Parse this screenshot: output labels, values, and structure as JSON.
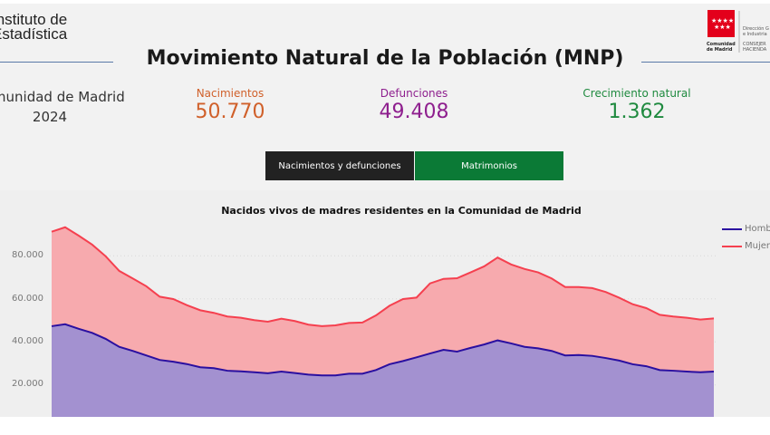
{
  "header": {
    "logo_ine": [
      "Instituto de",
      "Estadística"
    ],
    "title": "Movimiento Natural de la Población (MNP)",
    "region": "Comunidad de Madrid",
    "year": "2024",
    "logo_madrid": {
      "name": [
        "Comunidad",
        "de Madrid"
      ],
      "dept": [
        "Dirección G",
        "e Industria",
        "CONSEJER",
        "HACIENDA"
      ],
      "color": "#e3001b"
    }
  },
  "kpis": [
    {
      "label": "Nacimientos",
      "value": "50.770",
      "color": "#d0602a"
    },
    {
      "label": "Defunciones",
      "value": "49.408",
      "color": "#8e1f8e"
    },
    {
      "label": "Crecimiento natural",
      "value": "1.362",
      "color": "#1f8a3f"
    }
  ],
  "tabs": [
    {
      "label": "Nacimientos y defunciones",
      "active": true,
      "color": "#222222"
    },
    {
      "label": "Matrimonios",
      "active": false,
      "color": "#0b7a36"
    }
  ],
  "chart_data": {
    "type": "area",
    "stacked": true,
    "title": "Nacidos vivos de madres residentes en la Comunidad de Madrid",
    "y_ticks": [
      "20.000",
      "40.000",
      "60.000",
      "80.000"
    ],
    "grid": "horizontal dotted",
    "legend": "top-right",
    "series": [
      {
        "name": "Hombres",
        "color": "#2a0fa0",
        "fill": "#a391d0",
        "values": [
          47300,
          48200,
          46100,
          44200,
          41400,
          37700,
          35800,
          33700,
          31600,
          30800,
          29700,
          28200,
          27800,
          26600,
          26300,
          25900,
          25400,
          26200,
          25500,
          24800,
          24400,
          24400,
          25200,
          25200,
          26900,
          29600,
          31100,
          32800,
          34600,
          36300,
          35500,
          37200,
          38800,
          40700,
          39300,
          37700,
          37000,
          35800,
          33700,
          33900,
          33500,
          32500,
          31300,
          29600,
          28700,
          26900,
          26600,
          26200,
          25900,
          26200
        ]
      },
      {
        "name": "Mujeres",
        "color": "#f5404f",
        "fill": "#f7aaae",
        "values": [
          43900,
          45100,
          43300,
          41000,
          38400,
          35300,
          33700,
          32200,
          29400,
          29100,
          27400,
          26500,
          25700,
          25200,
          24900,
          24200,
          24000,
          24600,
          24200,
          23200,
          22900,
          23300,
          23600,
          23800,
          25400,
          27200,
          28800,
          27800,
          32600,
          33000,
          34100,
          35100,
          36300,
          38500,
          36700,
          36200,
          35300,
          33700,
          31800,
          31600,
          31500,
          30700,
          29200,
          27900,
          27000,
          25700,
          25200,
          25000,
          24500,
          24700
        ]
      }
    ]
  }
}
